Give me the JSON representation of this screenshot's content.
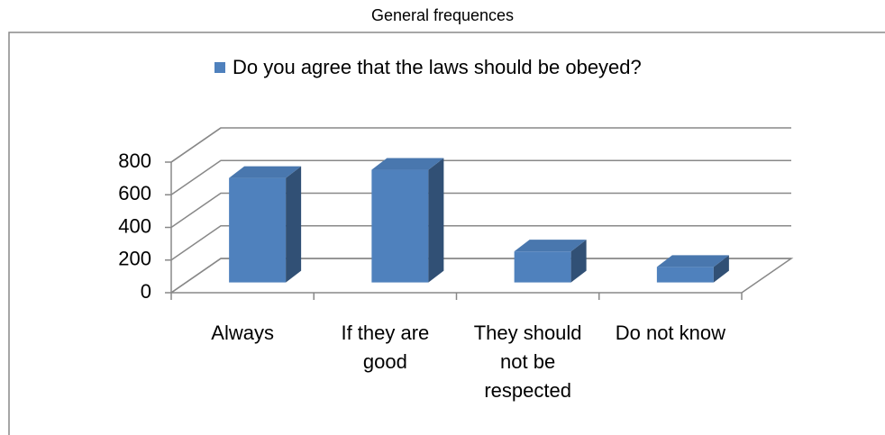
{
  "chart_data": {
    "type": "bar3d",
    "title": "General frequences",
    "categories": [
      "Always",
      "If they are good",
      "They should not be respected",
      "Do not know"
    ],
    "series": [
      {
        "name": "Do you agree that the laws should be obeyed?",
        "color": "#4f81bd",
        "values": [
          640,
          690,
          190,
          95
        ]
      }
    ],
    "ylim": [
      0,
      800
    ],
    "yticks": [
      0,
      200,
      400,
      600,
      800
    ],
    "grid": true,
    "legend": "top"
  }
}
